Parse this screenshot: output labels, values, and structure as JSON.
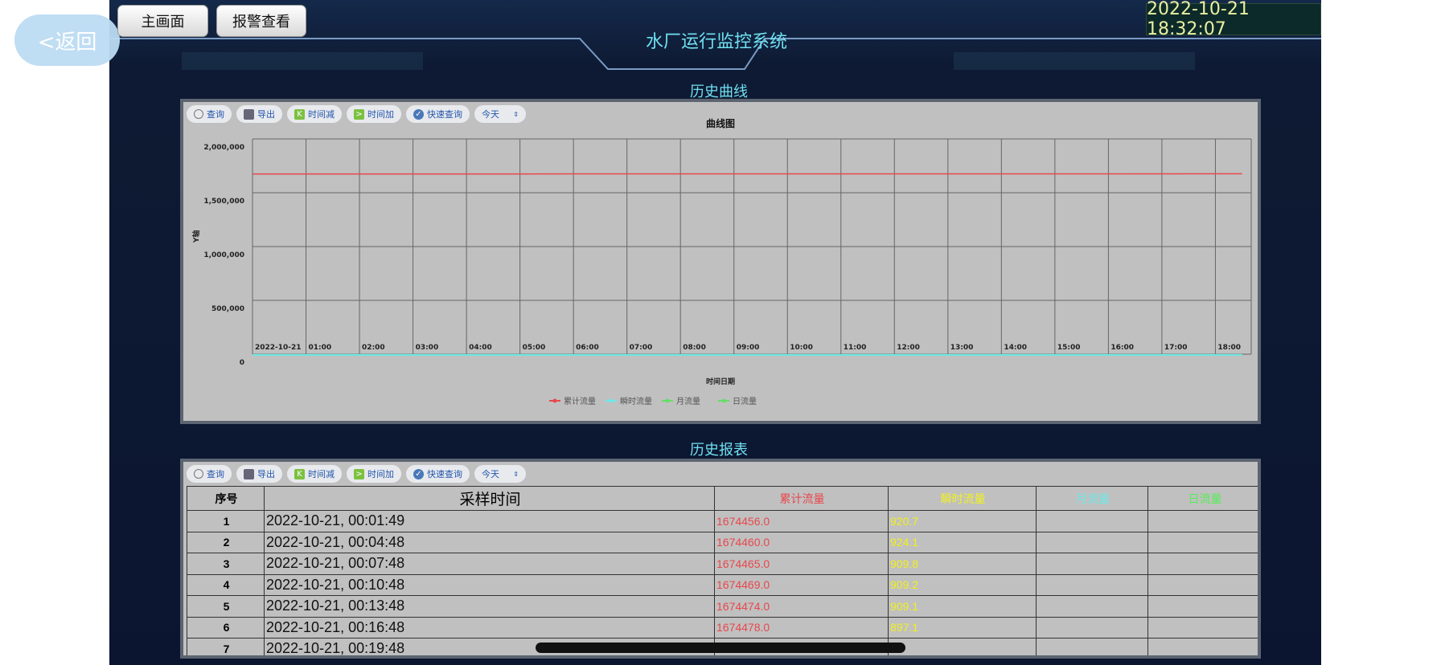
{
  "nav": {
    "back": "<返回",
    "home": "主画面",
    "alarm": "报警查看"
  },
  "header": {
    "title": "水厂运行监控系统",
    "datetime": "2022-10-21 18:32:07"
  },
  "toolbar": {
    "query": "查询",
    "export": "导出",
    "time_minus": "时间减",
    "time_plus": "时间加",
    "quick_query": "快速查询",
    "range_select": "今天"
  },
  "chart_section": {
    "label": "历史曲线"
  },
  "table_section": {
    "label": "历史报表"
  },
  "colors": {
    "cumulative": "#e8474c",
    "instant": "#6ee8e8",
    "monthly": "#66dd66",
    "daily": "#66dd66",
    "accent": "#6fe0f0"
  },
  "chart_data": {
    "type": "line",
    "title": "曲线图",
    "xlabel": "时间日期",
    "ylabel": "Y轴",
    "ylim": [
      0,
      2000000
    ],
    "yticks": [
      "0",
      "500,000",
      "1,000,000",
      "1,500,000",
      "2,000,000"
    ],
    "xticks": [
      "2022-10-21",
      "01:00",
      "02:00",
      "03:00",
      "04:00",
      "05:00",
      "06:00",
      "07:00",
      "08:00",
      "09:00",
      "10:00",
      "11:00",
      "12:00",
      "13:00",
      "14:00",
      "15:00",
      "16:00",
      "17:00",
      "18:00"
    ],
    "x_hours": [
      0,
      2,
      4,
      6,
      8,
      10,
      12,
      14,
      16,
      18,
      18.5
    ],
    "grid": true,
    "legend_placement": "bottom",
    "series": [
      {
        "name": "累计流量",
        "values": [
          1674450,
          1674620,
          1674790,
          1674960,
          1675130,
          1675300,
          1675470,
          1675640,
          1675810,
          1675980,
          1676020
        ]
      },
      {
        "name": "瞬时流量",
        "values": [
          920,
          910,
          905,
          900,
          910,
          915,
          900,
          905,
          910,
          900,
          900
        ]
      },
      {
        "name": "月流量",
        "values": [
          0,
          0,
          0,
          0,
          0,
          0,
          0,
          0,
          0,
          0,
          0
        ]
      },
      {
        "name": "日流量",
        "values": [
          0,
          0,
          0,
          0,
          0,
          0,
          0,
          0,
          0,
          0,
          0
        ]
      }
    ]
  },
  "table": {
    "headers": [
      "序号",
      "采样时间",
      "累计流量",
      "瞬时流量",
      "月流量",
      "日流量"
    ],
    "rows": [
      {
        "idx": "1",
        "time": "2022-10-21, 00:01:49",
        "cum": "1674456.0",
        "inst": "920.7"
      },
      {
        "idx": "2",
        "time": "2022-10-21, 00:04:48",
        "cum": "1674460.0",
        "inst": "924.1"
      },
      {
        "idx": "3",
        "time": "2022-10-21, 00:07:48",
        "cum": "1674465.0",
        "inst": "909.8"
      },
      {
        "idx": "4",
        "time": "2022-10-21, 00:10:48",
        "cum": "1674469.0",
        "inst": "909.2"
      },
      {
        "idx": "5",
        "time": "2022-10-21, 00:13:48",
        "cum": "1674474.0",
        "inst": "909.1"
      },
      {
        "idx": "6",
        "time": "2022-10-21, 00:16:48",
        "cum": "1674478.0",
        "inst": "897.1"
      },
      {
        "idx": "7",
        "time": "2022-10-21, 00:19:48",
        "cum": "",
        "inst": ""
      }
    ]
  }
}
